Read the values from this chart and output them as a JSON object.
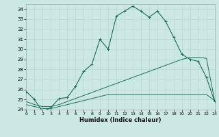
{
  "xlabel": "Humidex (Indice chaleur)",
  "bg_color": "#cce8e5",
  "grid_color": "#b8d8d5",
  "line_color": "#1a6b5a",
  "xlim": [
    0,
    23
  ],
  "ylim": [
    24,
    34.5
  ],
  "xtick_vals": [
    0,
    1,
    2,
    3,
    4,
    5,
    6,
    7,
    8,
    9,
    10,
    11,
    12,
    13,
    14,
    15,
    16,
    17,
    18,
    19,
    20,
    21,
    22,
    23
  ],
  "ytick_vals": [
    24,
    25,
    26,
    27,
    28,
    29,
    30,
    31,
    32,
    33,
    34
  ],
  "curve1_x": [
    0,
    1,
    2,
    3,
    4,
    5,
    6,
    7,
    8,
    9,
    10,
    11,
    12,
    13,
    14,
    15,
    16,
    17,
    18,
    19,
    20,
    21,
    22,
    23
  ],
  "curve1_y": [
    25.8,
    25.0,
    23.8,
    24.2,
    25.1,
    25.2,
    26.3,
    27.8,
    28.5,
    31.0,
    30.0,
    33.3,
    33.8,
    34.3,
    33.8,
    33.2,
    33.8,
    32.8,
    31.2,
    29.5,
    29.0,
    28.8,
    27.2,
    24.8
  ],
  "curve2_x": [
    0,
    1,
    2,
    3,
    4,
    5,
    6,
    7,
    8,
    9,
    10,
    11,
    12,
    13,
    14,
    15,
    16,
    17,
    18,
    19,
    20,
    21,
    22,
    23
  ],
  "curve2_y": [
    24.8,
    24.5,
    24.3,
    24.3,
    24.5,
    24.8,
    25.1,
    25.4,
    25.7,
    26.0,
    26.3,
    26.6,
    26.9,
    27.2,
    27.5,
    27.8,
    28.1,
    28.4,
    28.7,
    29.0,
    29.2,
    29.2,
    29.1,
    24.9
  ],
  "curve3_x": [
    0,
    1,
    2,
    3,
    4,
    5,
    6,
    7,
    8,
    9,
    10,
    11,
    12,
    13,
    14,
    15,
    16,
    17,
    18,
    19,
    20,
    21,
    22,
    23
  ],
  "curve3_y": [
    24.5,
    24.3,
    24.1,
    24.1,
    24.3,
    24.5,
    24.7,
    24.9,
    25.1,
    25.3,
    25.5,
    25.5,
    25.5,
    25.5,
    25.5,
    25.5,
    25.5,
    25.5,
    25.5,
    25.5,
    25.5,
    25.5,
    25.5,
    24.9
  ]
}
